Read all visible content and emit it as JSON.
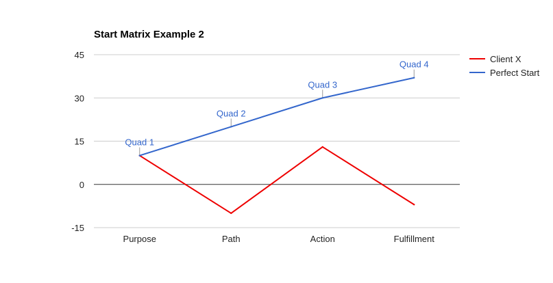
{
  "chart_data": {
    "type": "line",
    "title": "Start Matrix Example 2",
    "categories": [
      "Purpose",
      "Path",
      "Action",
      "Fulfillment"
    ],
    "series": [
      {
        "name": "Client X",
        "color": "#ee0000",
        "values": [
          10,
          -10,
          13,
          -7
        ]
      },
      {
        "name": "Perfect Start",
        "color": "#3366cc",
        "values": [
          10,
          20,
          30,
          37
        ]
      }
    ],
    "annotations": {
      "series": "Perfect Start",
      "labels": [
        "Quad 1",
        "Quad 2",
        "Quad 3",
        "Quad 4"
      ]
    },
    "ylim": [
      -15,
      45
    ],
    "yticks": [
      -15,
      0,
      15,
      30,
      45
    ],
    "grid": true,
    "legend": "right"
  }
}
